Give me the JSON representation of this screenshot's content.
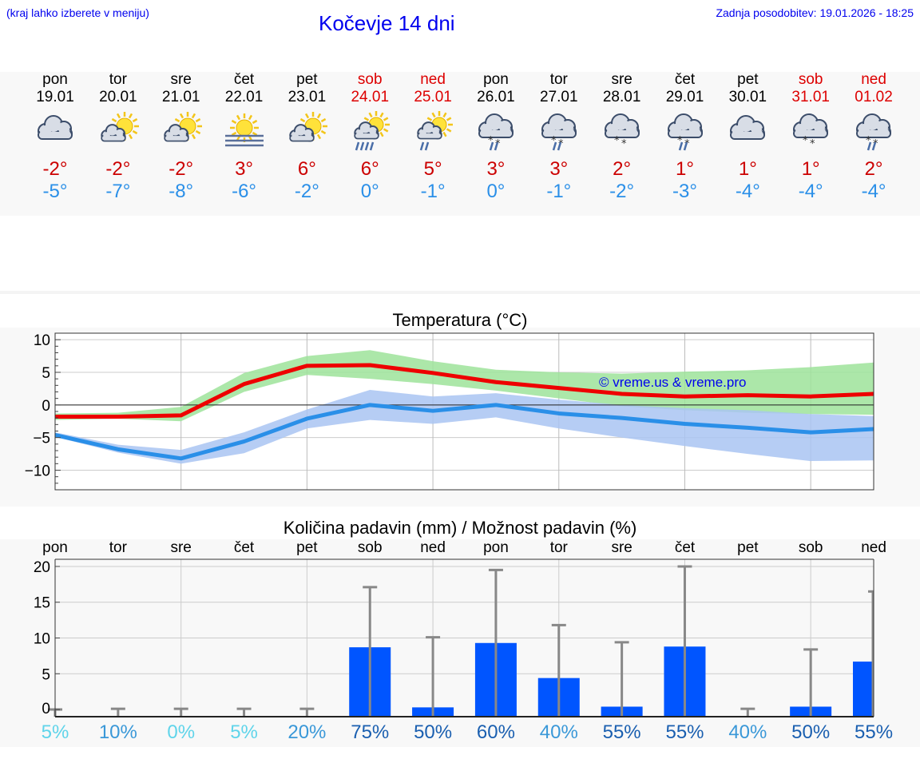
{
  "header": {
    "hint": "(kraj lahko izberete v meniju)",
    "title": "Kočevje 14 dni",
    "updated": "Zadnja posodobitev: 19.01.2026 - 18:25"
  },
  "days": [
    {
      "name": "pon",
      "date": "19.01",
      "weekend": false,
      "icon": "cloudy-icon",
      "tmax": "-2°",
      "tmin": "-5°"
    },
    {
      "name": "tor",
      "date": "20.01",
      "weekend": false,
      "icon": "partly-sunny-icon",
      "tmax": "-2°",
      "tmin": "-7°"
    },
    {
      "name": "sre",
      "date": "21.01",
      "weekend": false,
      "icon": "partly-sunny-icon",
      "tmax": "-2°",
      "tmin": "-8°"
    },
    {
      "name": "čet",
      "date": "22.01",
      "weekend": false,
      "icon": "sun-fog-icon",
      "tmax": "3°",
      "tmin": "-6°"
    },
    {
      "name": "pet",
      "date": "23.01",
      "weekend": false,
      "icon": "partly-sunny-icon",
      "tmax": "6°",
      "tmin": "-2°"
    },
    {
      "name": "sob",
      "date": "24.01",
      "weekend": true,
      "icon": "sun-rain-icon",
      "tmax": "6°",
      "tmin": "0°"
    },
    {
      "name": "ned",
      "date": "25.01",
      "weekend": true,
      "icon": "sun-light-rain-icon",
      "tmax": "5°",
      "tmin": "-1°"
    },
    {
      "name": "pon",
      "date": "26.01",
      "weekend": false,
      "icon": "cloud-sleet-icon",
      "tmax": "3°",
      "tmin": "0°"
    },
    {
      "name": "tor",
      "date": "27.01",
      "weekend": false,
      "icon": "cloud-sleet-icon",
      "tmax": "3°",
      "tmin": "-1°"
    },
    {
      "name": "sre",
      "date": "28.01",
      "weekend": false,
      "icon": "cloud-snow-icon",
      "tmax": "2°",
      "tmin": "-2°"
    },
    {
      "name": "čet",
      "date": "29.01",
      "weekend": false,
      "icon": "cloud-sleet-icon",
      "tmax": "1°",
      "tmin": "-3°"
    },
    {
      "name": "pet",
      "date": "30.01",
      "weekend": false,
      "icon": "cloudy-icon",
      "tmax": "1°",
      "tmin": "-4°"
    },
    {
      "name": "sob",
      "date": "31.01",
      "weekend": true,
      "icon": "cloud-snow-icon",
      "tmax": "1°",
      "tmin": "-4°"
    },
    {
      "name": "ned",
      "date": "01.02",
      "weekend": true,
      "icon": "cloud-sleet-icon",
      "tmax": "2°",
      "tmin": "-4°"
    }
  ],
  "chart_data": [
    {
      "type": "line",
      "title": "Temperatura (°C)",
      "x": [
        0,
        1,
        2,
        3,
        4,
        5,
        6,
        7,
        8,
        9,
        10,
        11,
        12,
        13
      ],
      "ylim": [
        -13,
        11
      ],
      "yticks": [
        10,
        5,
        0,
        -5,
        -10
      ],
      "ytick_labels": [
        "10",
        "5",
        "0",
        "−5",
        "−10"
      ],
      "watermark": "© vreme.us & vreme.pro",
      "series": [
        {
          "name": "max",
          "color": "#ee0000",
          "values": [
            -1.8,
            -1.8,
            -1.6,
            3.2,
            6.0,
            6.1,
            4.9,
            3.5,
            2.6,
            1.7,
            1.3,
            1.5,
            1.3,
            1.7
          ],
          "band_low": [
            -2.3,
            -2.1,
            -2.5,
            2.0,
            4.6,
            4.0,
            3.2,
            2.2,
            1.0,
            -0.2,
            -0.8,
            -1.2,
            -1.4,
            -1.5
          ],
          "band_high": [
            -1.3,
            -1.2,
            -0.3,
            4.9,
            7.5,
            8.4,
            6.7,
            5.4,
            5.0,
            4.8,
            5.1,
            5.3,
            5.8,
            6.5
          ],
          "band_color": "#9ee39a"
        },
        {
          "name": "min",
          "color": "#2a8fe8",
          "values": [
            -4.6,
            -6.8,
            -8.2,
            -5.6,
            -2.1,
            0.0,
            -0.9,
            0.0,
            -1.3,
            -2.0,
            -2.9,
            -3.5,
            -4.2,
            -3.7
          ],
          "band_low": [
            -4.9,
            -7.3,
            -9.0,
            -7.4,
            -3.6,
            -2.3,
            -2.9,
            -1.9,
            -3.6,
            -5.0,
            -6.3,
            -7.5,
            -8.6,
            -8.5
          ],
          "band_high": [
            -4.2,
            -6.1,
            -6.9,
            -4.2,
            -0.7,
            2.3,
            1.3,
            1.8,
            0.8,
            0.0,
            -0.5,
            -0.8,
            -1.4,
            -1.7
          ],
          "band_color": "#a9c4f2"
        }
      ]
    },
    {
      "type": "bar",
      "title": "Količina padavin (mm) / Možnost padavin (%)",
      "categories": [
        "pon",
        "tor",
        "sre",
        "čet",
        "pet",
        "sob",
        "ned",
        "pon",
        "tor",
        "sre",
        "čet",
        "pet",
        "sob",
        "ned"
      ],
      "values": [
        0,
        0,
        0,
        0,
        0,
        8.7,
        0.3,
        9.3,
        4.4,
        0.4,
        8.8,
        0,
        0.4,
        6.7
      ],
      "error_high": [
        0,
        0.1,
        0.1,
        0.1,
        0.1,
        17.1,
        10.1,
        19.5,
        11.8,
        9.4,
        20.0,
        0.1,
        8.4,
        16.5
      ],
      "ylim": [
        -1,
        21
      ],
      "yticks": [
        0,
        5,
        10,
        15,
        20
      ],
      "probability": [
        "5%",
        "10%",
        "0%",
        "5%",
        "20%",
        "75%",
        "50%",
        "60%",
        "40%",
        "55%",
        "55%",
        "40%",
        "50%",
        "55%"
      ],
      "probability_colors": [
        "#5fd4ea",
        "#3a98d8",
        "#5fd4ea",
        "#5fd4ea",
        "#3a98d8",
        "#1a5fb0",
        "#1a5fb0",
        "#1a5fb0",
        "#3a98d8",
        "#1a5fb0",
        "#1a5fb0",
        "#3a98d8",
        "#1a5fb0",
        "#1a5fb0"
      ],
      "bar_color": "#0055ff",
      "error_color": "#888888"
    }
  ]
}
